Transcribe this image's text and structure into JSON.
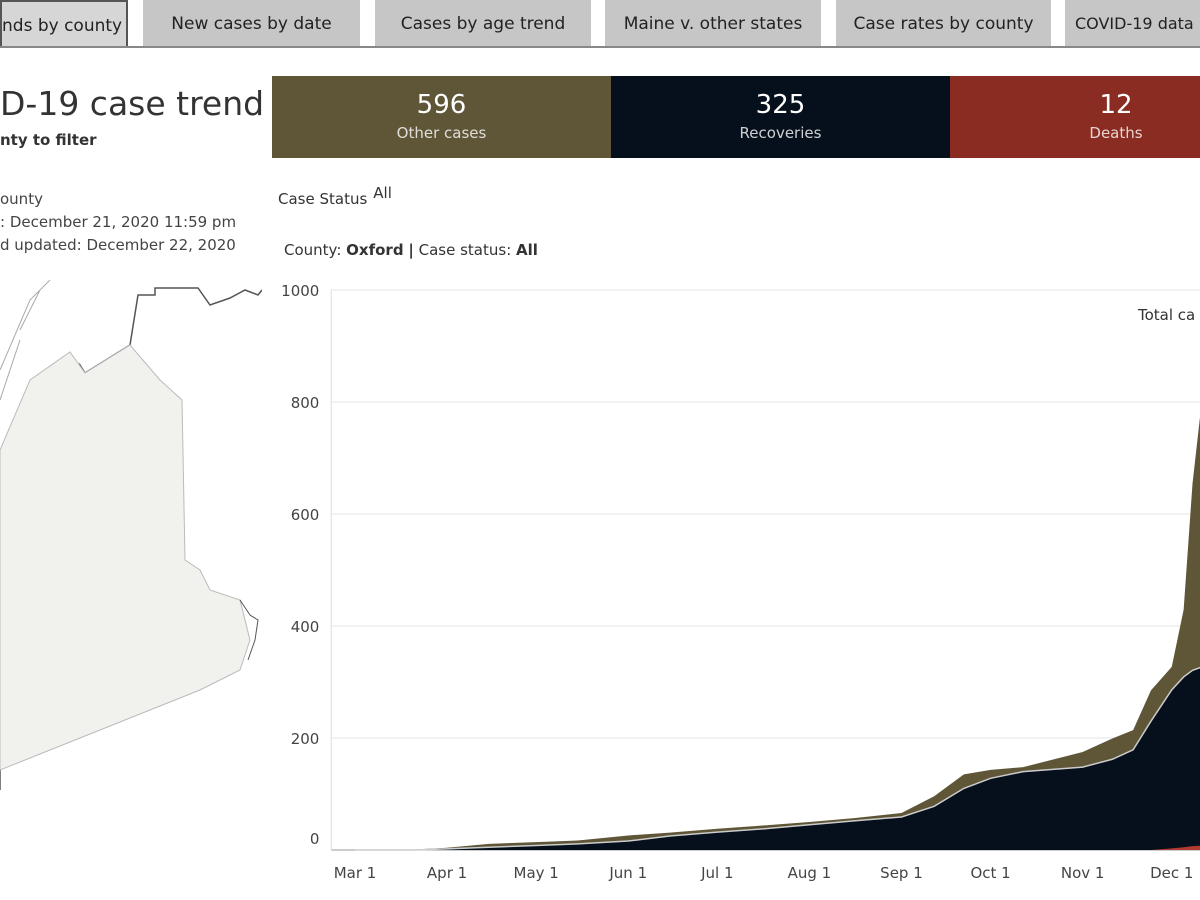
{
  "tabs": [
    {
      "label": "nds by county",
      "selected": true
    },
    {
      "label": "New cases by date"
    },
    {
      "label": "Cases by age trend"
    },
    {
      "label": "Maine v. other states"
    },
    {
      "label": "Case rates by county"
    },
    {
      "label": "COVID-19 data"
    }
  ],
  "header": {
    "title": "D-19 case trend",
    "subtitle": "nty to filter"
  },
  "info": {
    "line1": "ounty",
    "line2": ": December 21, 2020 11:59 pm",
    "line3": "d updated: December 22, 2020"
  },
  "kpis": [
    {
      "value": "596",
      "label": "Other cases",
      "color": "#5f5638"
    },
    {
      "value": "325",
      "label": "Recoveries",
      "color": "#05101c"
    },
    {
      "value": "12",
      "label": "Deaths",
      "color": "#8a2c22"
    }
  ],
  "filters": {
    "case_status_label": "Case Status",
    "case_status_value": "All",
    "county_label": "County:",
    "county_value": "Oxford",
    "sep": "|",
    "status_label": "Case status:",
    "status_value": "All"
  },
  "chart_data": {
    "type": "area",
    "title": "",
    "xlabel": "",
    "ylabel": "",
    "ylim": [
      0,
      1000
    ],
    "yticks": [
      0,
      200,
      400,
      600,
      800,
      1000
    ],
    "xtick_labels": [
      "Mar 1",
      "Apr 1",
      "May 1",
      "Jun 1",
      "Jul 1",
      "Aug 1",
      "Sep 1",
      "Oct 1",
      "Nov 1",
      "Dec 1"
    ],
    "xtick_days": [
      0,
      31,
      61,
      92,
      122,
      153,
      184,
      214,
      245,
      275
    ],
    "annotation": "Total ca",
    "x_days": [
      0,
      20,
      31,
      45,
      61,
      75,
      92,
      106,
      122,
      138,
      153,
      168,
      184,
      195,
      205,
      214,
      225,
      245,
      255,
      262,
      268,
      275,
      279,
      282,
      287
    ],
    "series": [
      {
        "name": "Recoveries",
        "color": "#05101c",
        "values": [
          0,
          0,
          2,
          5,
          8,
          11,
          16,
          25,
          32,
          38,
          45,
          52,
          59,
          78,
          110,
          128,
          140,
          148,
          162,
          179,
          230,
          286,
          309,
          321,
          330
        ]
      },
      {
        "name": "Other cases",
        "color": "#5f5638",
        "values": [
          0,
          1,
          2,
          6,
          6,
          6,
          10,
          6,
          6,
          6,
          5,
          5,
          7,
          18,
          25,
          15,
          8,
          27,
          37,
          35,
          55,
          41,
          120,
          334,
          560
        ]
      },
      {
        "name": "Deaths",
        "color": "#b03a2e",
        "values": [
          0,
          0,
          0,
          0,
          0,
          0,
          0,
          0,
          0,
          0,
          0,
          0,
          0,
          0,
          0,
          0,
          0,
          0,
          0,
          0,
          0,
          3,
          5,
          7,
          8
        ]
      }
    ]
  }
}
